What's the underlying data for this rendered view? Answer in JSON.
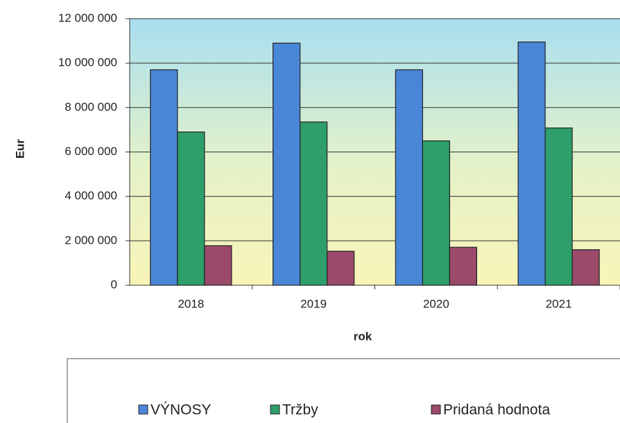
{
  "chart_data": {
    "type": "bar",
    "x_label": "rok",
    "y_label": "Eur",
    "categories": [
      "2018",
      "2019",
      "2020",
      "2021"
    ],
    "series": [
      {
        "name": "VÝNOSY",
        "color": "#4a86d8",
        "values": [
          9700000,
          10900000,
          9700000,
          10950000
        ]
      },
      {
        "name": "Tržby",
        "color": "#2e9e6a",
        "values": [
          6900000,
          7350000,
          6500000,
          7080000
        ]
      },
      {
        "name": "Pridaná hodnota",
        "color": "#9b4a6a",
        "values": [
          1780000,
          1530000,
          1710000,
          1600000
        ]
      }
    ],
    "ylim": [
      0,
      12000000
    ],
    "yticks": [
      0,
      {
        "value": 2000000,
        "label": "2 000 000"
      },
      {
        "value": 4000000,
        "label": "4 000 000"
      },
      {
        "value": 6000000,
        "label": "6 000 000"
      },
      {
        "value": 8000000,
        "label": "8 000 000"
      },
      {
        "value": 10000000,
        "label": "10 000 000"
      },
      {
        "value": 12000000,
        "label": "12 000 000"
      }
    ],
    "grid": true,
    "legend": "bottom"
  }
}
